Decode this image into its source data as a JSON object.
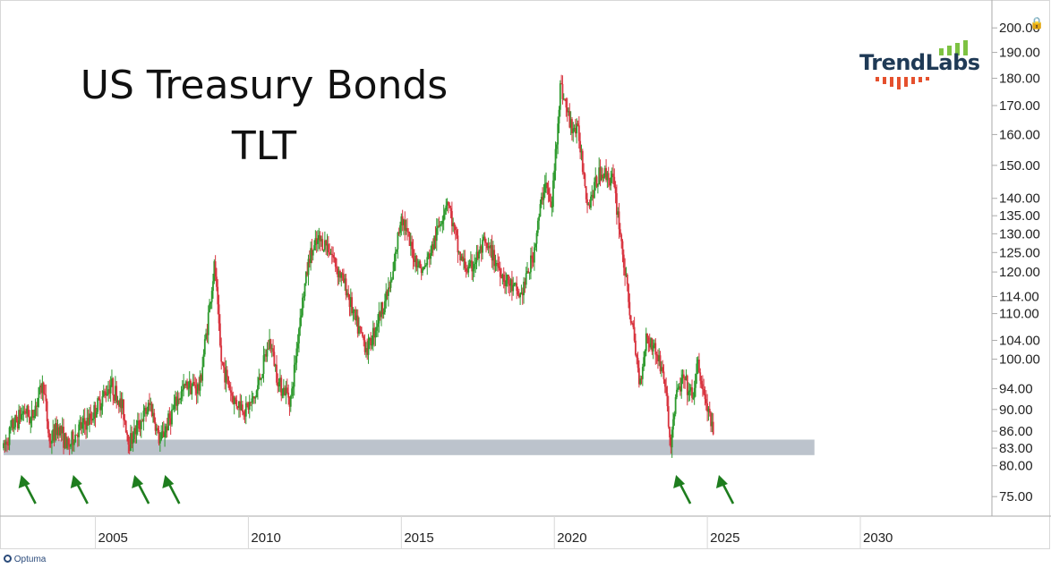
{
  "title": {
    "line1": "US Treasury Bonds",
    "line2": "TLT"
  },
  "brand": {
    "name": "TrendLabs",
    "accent_green": "#7dc242",
    "accent_red": "#e5502d",
    "text_color": "#1f3a56"
  },
  "footer": {
    "logo_text": "Optuma"
  },
  "icons": {
    "lock": "lock-icon",
    "footer": "optuma-logo-icon"
  },
  "colors": {
    "up": "#2e9a2e",
    "down": "#d8343f",
    "support_band": "#bcc3cc",
    "arrow": "#1e7d1e",
    "axis": "#aaaaaa"
  },
  "chart_data": {
    "type": "candlestick",
    "title": "",
    "y_scale": "log",
    "ylim": [
      72,
      205
    ],
    "xlim": [
      2002.0,
      2034.3
    ],
    "x_ticks": [
      2005,
      2010,
      2015,
      2020,
      2025,
      2030
    ],
    "x_tick_labels": [
      "2005",
      "2010",
      "2015",
      "2020",
      "2025",
      "2030"
    ],
    "y_ticks": [
      200,
      190,
      180,
      170,
      160,
      150,
      140,
      135,
      130,
      125,
      120,
      114,
      110,
      104,
      100,
      94,
      90,
      86,
      83,
      80,
      75
    ],
    "y_tick_labels": [
      "200.00",
      "190.00",
      "180.00",
      "170.00",
      "160.00",
      "150.00",
      "140.00",
      "135.00",
      "130.00",
      "125.00",
      "120.00",
      "114.00",
      "110.00",
      "104.00",
      "100.00",
      "94.00",
      "90.00",
      "86.00",
      "83.00",
      "80.00",
      "75.00"
    ],
    "support_band": {
      "low": 81.8,
      "high": 84.5,
      "x_start": 2002.0,
      "x_end": 2028.5
    },
    "support_touches": [
      2002.4,
      2004.1,
      2006.1,
      2007.1,
      2023.8,
      2025.2
    ],
    "price_path": [
      [
        2002.0,
        83
      ],
      [
        2002.3,
        87
      ],
      [
        2002.7,
        90
      ],
      [
        2002.9,
        88
      ],
      [
        2003.1,
        92
      ],
      [
        2003.3,
        95
      ],
      [
        2003.5,
        84
      ],
      [
        2003.8,
        87
      ],
      [
        2004.1,
        83
      ],
      [
        2004.4,
        86
      ],
      [
        2004.8,
        88
      ],
      [
        2005.2,
        92
      ],
      [
        2005.5,
        95
      ],
      [
        2005.9,
        90
      ],
      [
        2006.1,
        84
      ],
      [
        2006.5,
        88
      ],
      [
        2006.8,
        91
      ],
      [
        2007.1,
        84
      ],
      [
        2007.4,
        88
      ],
      [
        2007.7,
        92
      ],
      [
        2008.0,
        95
      ],
      [
        2008.4,
        94
      ],
      [
        2008.9,
        122
      ],
      [
        2009.1,
        100
      ],
      [
        2009.5,
        92
      ],
      [
        2009.9,
        90
      ],
      [
        2010.2,
        92
      ],
      [
        2010.7,
        104
      ],
      [
        2011.0,
        95
      ],
      [
        2011.4,
        92
      ],
      [
        2011.7,
        110
      ],
      [
        2012.0,
        124
      ],
      [
        2012.3,
        128
      ],
      [
        2012.6,
        127
      ],
      [
        2012.9,
        121
      ],
      [
        2013.2,
        116
      ],
      [
        2013.5,
        108
      ],
      [
        2013.9,
        102
      ],
      [
        2014.2,
        108
      ],
      [
        2014.7,
        118
      ],
      [
        2015.0,
        136
      ],
      [
        2015.3,
        126
      ],
      [
        2015.7,
        120
      ],
      [
        2016.0,
        126
      ],
      [
        2016.5,
        140
      ],
      [
        2016.9,
        124
      ],
      [
        2017.2,
        120
      ],
      [
        2017.7,
        127
      ],
      [
        2018.0,
        124
      ],
      [
        2018.4,
        118
      ],
      [
        2018.9,
        114
      ],
      [
        2019.3,
        124
      ],
      [
        2019.7,
        146
      ],
      [
        2019.9,
        136
      ],
      [
        2020.2,
        178
      ],
      [
        2020.5,
        164
      ],
      [
        2020.8,
        160
      ],
      [
        2021.1,
        138
      ],
      [
        2021.5,
        148
      ],
      [
        2021.9,
        146
      ],
      [
        2022.1,
        134
      ],
      [
        2022.4,
        114
      ],
      [
        2022.8,
        95
      ],
      [
        2023.0,
        105
      ],
      [
        2023.3,
        102
      ],
      [
        2023.6,
        96
      ],
      [
        2023.8,
        83
      ],
      [
        2023.95,
        92
      ],
      [
        2024.2,
        96
      ],
      [
        2024.5,
        92
      ],
      [
        2024.7,
        99
      ],
      [
        2024.9,
        92
      ],
      [
        2025.1,
        88
      ],
      [
        2025.2,
        85
      ]
    ]
  }
}
